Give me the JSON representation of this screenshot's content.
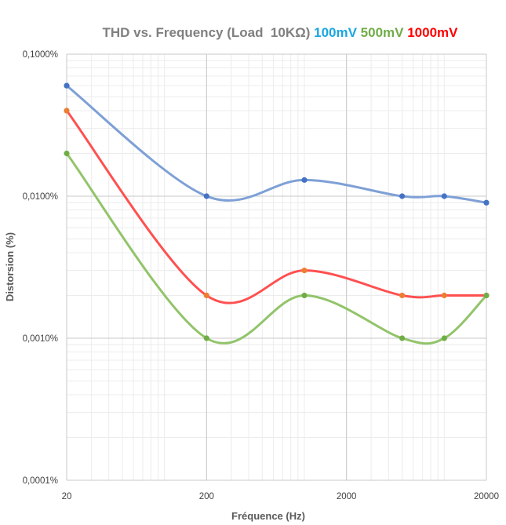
{
  "chart_data": {
    "type": "line",
    "title_parts": [
      {
        "text": "THD vs. Frequency (Load  10KΩ) ",
        "color": "#808080"
      },
      {
        "text": "100mV ",
        "color": "#1AA7E0"
      },
      {
        "text": "500mV ",
        "color": "#70AD47"
      },
      {
        "text": "1000mV",
        "color": "#FF0000"
      }
    ],
    "xlabel": "Fréquence (Hz)",
    "ylabel": "Distorsion (%)",
    "x_scale": "log",
    "y_scale": "log",
    "xlim": [
      20,
      20000
    ],
    "ylim": [
      0.0001,
      0.1
    ],
    "x_ticks": [
      {
        "value": 20,
        "label": "20"
      },
      {
        "value": 200,
        "label": "200"
      },
      {
        "value": 2000,
        "label": "2000"
      },
      {
        "value": 20000,
        "label": "20000"
      }
    ],
    "y_ticks": [
      {
        "value": 0.1,
        "label": "0,1000%"
      },
      {
        "value": 0.01,
        "label": "0,0100%"
      },
      {
        "value": 0.001,
        "label": "0,0010%"
      },
      {
        "value": 0.0001,
        "label": "0,0001%"
      }
    ],
    "grid": true,
    "series": [
      {
        "line_color": "#7EA0D6",
        "marker_color": "#4472C4",
        "points": [
          [
            20,
            0.06
          ],
          [
            200,
            0.01
          ],
          [
            1000,
            0.013
          ],
          [
            5000,
            0.01
          ],
          [
            10000,
            0.01
          ],
          [
            20000,
            0.009
          ]
        ]
      },
      {
        "line_color": "#FF5050",
        "marker_color": "#ED7D31",
        "points": [
          [
            20,
            0.04
          ],
          [
            200,
            0.002
          ],
          [
            1000,
            0.003
          ],
          [
            5000,
            0.002
          ],
          [
            10000,
            0.002
          ],
          [
            20000,
            0.002
          ]
        ]
      },
      {
        "line_color": "#92C46A",
        "marker_color": "#70AD47",
        "points": [
          [
            20,
            0.02
          ],
          [
            200,
            0.001
          ],
          [
            1000,
            0.002
          ],
          [
            5000,
            0.001
          ],
          [
            10000,
            0.001
          ],
          [
            20000,
            0.002
          ]
        ]
      }
    ]
  }
}
